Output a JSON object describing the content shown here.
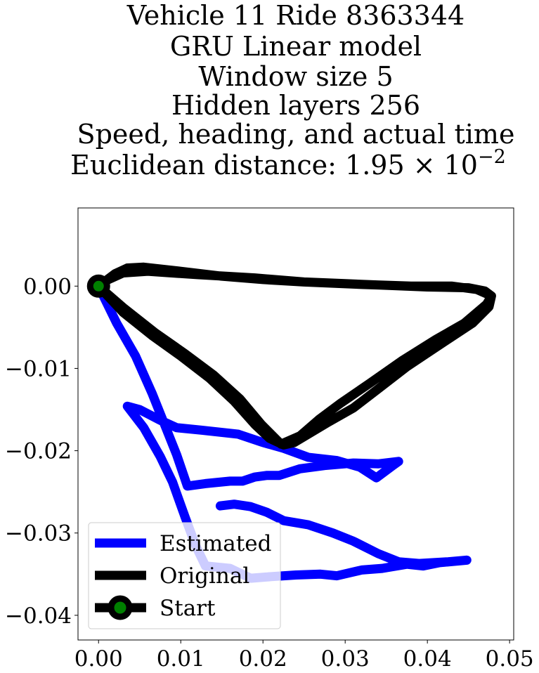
{
  "chart_data": {
    "type": "line",
    "title_lines": [
      "Vehicle 11 Ride 8363344",
      "GRU Linear model",
      "Window size 5",
      "Hidden layers 256",
      "Speed, heading, and actual time",
      "Euclidean distance: 1.95 × 10"
    ],
    "title_exponent": "−2",
    "xlabel": "",
    "ylabel": "",
    "xlim": [
      -0.0025,
      0.0505
    ],
    "ylim": [
      -0.043,
      0.0095
    ],
    "x_ticks": [
      0.0,
      0.01,
      0.02,
      0.03,
      0.04,
      0.05
    ],
    "x_tick_labels": [
      "0.00",
      "0.01",
      "0.02",
      "0.03",
      "0.04",
      "0.05"
    ],
    "y_ticks": [
      0.0,
      -0.01,
      -0.02,
      -0.03,
      -0.04
    ],
    "y_tick_labels": [
      "0.00",
      "−0.01",
      "−0.02",
      "−0.03",
      "−0.04"
    ],
    "grid": false,
    "legend_position": "lower-left",
    "series": [
      {
        "name": "Estimated",
        "color": "#0000ff",
        "points": [
          [
            0.0,
            0.0
          ],
          [
            0.0022,
            -0.0045
          ],
          [
            0.0045,
            -0.0085
          ],
          [
            0.0065,
            -0.013
          ],
          [
            0.0085,
            -0.018
          ],
          [
            0.0095,
            -0.0205
          ],
          [
            0.0108,
            -0.0243
          ],
          [
            0.013,
            -0.024
          ],
          [
            0.016,
            -0.0237
          ],
          [
            0.0175,
            -0.0237
          ],
          [
            0.019,
            -0.0232
          ],
          [
            0.0205,
            -0.023
          ],
          [
            0.022,
            -0.023
          ],
          [
            0.0245,
            -0.0222
          ],
          [
            0.0275,
            -0.0218
          ],
          [
            0.031,
            -0.0215
          ],
          [
            0.034,
            -0.0216
          ],
          [
            0.0365,
            -0.0213
          ],
          [
            0.0358,
            -0.0218
          ],
          [
            0.0338,
            -0.0233
          ],
          [
            0.0318,
            -0.022
          ],
          [
            0.029,
            -0.0212
          ],
          [
            0.0255,
            -0.0208
          ],
          [
            0.0225,
            -0.0197
          ],
          [
            0.02,
            -0.019
          ],
          [
            0.017,
            -0.018
          ],
          [
            0.0125,
            -0.0175
          ],
          [
            0.0095,
            -0.0172
          ],
          [
            0.0075,
            -0.0163
          ],
          [
            0.005,
            -0.015
          ],
          [
            0.0035,
            -0.0146
          ],
          [
            0.0055,
            -0.0172
          ],
          [
            0.0075,
            -0.0207
          ],
          [
            0.009,
            -0.0238
          ],
          [
            0.0105,
            -0.028
          ],
          [
            0.0118,
            -0.0315
          ],
          [
            0.013,
            -0.034
          ],
          [
            0.016,
            -0.0343
          ],
          [
            0.0185,
            -0.0355
          ],
          [
            0.021,
            -0.0353
          ],
          [
            0.024,
            -0.0351
          ],
          [
            0.027,
            -0.035
          ],
          [
            0.029,
            -0.0352
          ],
          [
            0.032,
            -0.0345
          ],
          [
            0.0345,
            -0.0343
          ],
          [
            0.0375,
            -0.0338
          ],
          [
            0.0395,
            -0.034
          ],
          [
            0.0415,
            -0.0336
          ],
          [
            0.0448,
            -0.0333
          ],
          [
            0.0425,
            -0.0335
          ],
          [
            0.039,
            -0.0337
          ],
          [
            0.0365,
            -0.0335
          ],
          [
            0.034,
            -0.0325
          ],
          [
            0.031,
            -0.031
          ],
          [
            0.0285,
            -0.03
          ],
          [
            0.0255,
            -0.029
          ],
          [
            0.0225,
            -0.0285
          ],
          [
            0.0205,
            -0.0275
          ],
          [
            0.0185,
            -0.0268
          ],
          [
            0.0165,
            -0.0265
          ],
          [
            0.0148,
            -0.0267
          ]
        ]
      },
      {
        "name": "Original",
        "color": "#000000",
        "points": [
          [
            0.0,
            0.0
          ],
          [
            0.002,
            0.0015
          ],
          [
            0.0035,
            0.0022
          ],
          [
            0.0055,
            0.0023
          ],
          [
            0.01,
            0.0018
          ],
          [
            0.015,
            0.0012
          ],
          [
            0.02,
            0.0008
          ],
          [
            0.025,
            0.0005
          ],
          [
            0.03,
            0.0003
          ],
          [
            0.035,
            0.0001
          ],
          [
            0.04,
            -0.0001
          ],
          [
            0.045,
            -0.0002
          ],
          [
            0.047,
            -0.0006
          ],
          [
            0.0478,
            -0.0012
          ],
          [
            0.0475,
            -0.0025
          ],
          [
            0.0455,
            -0.0045
          ],
          [
            0.042,
            -0.0068
          ],
          [
            0.0375,
            -0.0098
          ],
          [
            0.034,
            -0.0125
          ],
          [
            0.031,
            -0.0148
          ],
          [
            0.028,
            -0.0165
          ],
          [
            0.026,
            -0.0177
          ],
          [
            0.0238,
            -0.019
          ],
          [
            0.0225,
            -0.0193
          ],
          [
            0.0208,
            -0.0185
          ],
          [
            0.019,
            -0.0168
          ],
          [
            0.0165,
            -0.014
          ],
          [
            0.0135,
            -0.0112
          ],
          [
            0.01,
            -0.0085
          ],
          [
            0.0065,
            -0.006
          ],
          [
            0.003,
            -0.0032
          ],
          [
            0.0,
            0.0
          ],
          [
            0.003,
            -0.0026
          ],
          [
            0.0068,
            -0.0056
          ],
          [
            0.0105,
            -0.0082
          ],
          [
            0.014,
            -0.0108
          ],
          [
            0.0172,
            -0.0137
          ],
          [
            0.0198,
            -0.0168
          ],
          [
            0.0222,
            -0.0192
          ],
          [
            0.0245,
            -0.0182
          ],
          [
            0.0268,
            -0.0162
          ],
          [
            0.0295,
            -0.0142
          ],
          [
            0.033,
            -0.0118
          ],
          [
            0.037,
            -0.009
          ],
          [
            0.041,
            -0.0065
          ],
          [
            0.0445,
            -0.0045
          ],
          [
            0.0472,
            -0.0022
          ],
          [
            0.0478,
            -0.0012
          ],
          [
            0.046,
            -0.0004
          ],
          [
            0.043,
            0.0
          ],
          [
            0.038,
            0.0
          ],
          [
            0.032,
            0.0002
          ],
          [
            0.025,
            0.0005
          ],
          [
            0.019,
            0.001
          ],
          [
            0.012,
            0.0014
          ],
          [
            0.006,
            0.0018
          ],
          [
            0.003,
            0.0016
          ],
          [
            0.0012,
            0.0008
          ],
          [
            0.0,
            0.0
          ]
        ]
      }
    ],
    "start_point": {
      "name": "Start",
      "x": 0.0,
      "y": 0.0,
      "marker_edge": "#000000",
      "marker_face": "#008000"
    },
    "legend": [
      {
        "label": "Estimated",
        "color": "#0000ff",
        "marker": "none"
      },
      {
        "label": "Original",
        "color": "#000000",
        "marker": "none"
      },
      {
        "label": "Start",
        "color": "#000000",
        "marker": "circle",
        "marker_face": "#008000"
      }
    ]
  }
}
